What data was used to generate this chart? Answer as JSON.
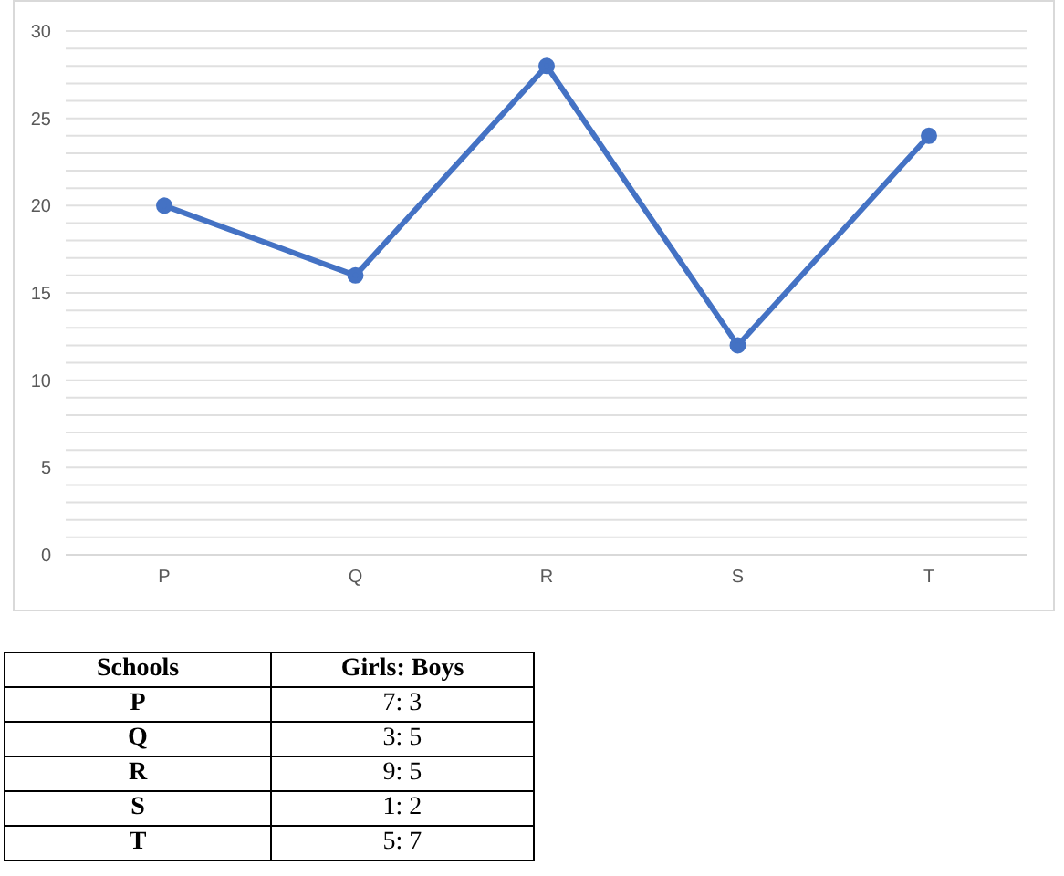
{
  "chart_data": [
    {
      "type": "line",
      "categories": [
        "P",
        "Q",
        "R",
        "S",
        "T"
      ],
      "series": [
        {
          "color": "#4472c4",
          "values": [
            20,
            16,
            28,
            12,
            24
          ]
        }
      ],
      "ylim": [
        0,
        30
      ],
      "yticks": [
        0,
        {
          "value": 1,
          "label": null
        },
        {
          "value": 2,
          "label": null
        },
        {
          "value": 3,
          "label": null
        },
        {
          "value": 4,
          "label": null
        },
        5,
        {
          "value": 6,
          "label": null
        },
        {
          "value": 7,
          "label": null
        },
        {
          "value": 8,
          "label": null
        },
        {
          "value": 9,
          "label": null
        },
        10,
        {
          "value": 11,
          "label": null
        },
        {
          "value": 12,
          "label": null
        },
        {
          "value": 13,
          "label": null
        },
        {
          "value": 14,
          "label": null
        },
        15,
        {
          "value": 16,
          "label": null
        },
        {
          "value": 17,
          "label": null
        },
        {
          "value": 18,
          "label": null
        },
        {
          "value": 19,
          "label": null
        },
        20,
        {
          "value": 21,
          "label": null
        },
        {
          "value": 22,
          "label": null
        },
        {
          "value": 23,
          "label": null
        },
        {
          "value": 24,
          "label": null
        },
        25,
        {
          "value": 26,
          "label": null
        },
        {
          "value": 27,
          "label": null
        },
        {
          "value": 28,
          "label": null
        },
        {
          "value": 29,
          "label": null
        },
        30
      ],
      "grid": "y",
      "marker": "circle",
      "line_style": "solid"
    },
    {
      "type": "other",
      "annotations": [
        "Schools",
        "Girls: Boys",
        "P",
        "7: 3",
        "Q",
        "3: 5",
        "R",
        "9: 5",
        "S",
        "1: 2",
        "T",
        "5: 7"
      ]
    }
  ]
}
